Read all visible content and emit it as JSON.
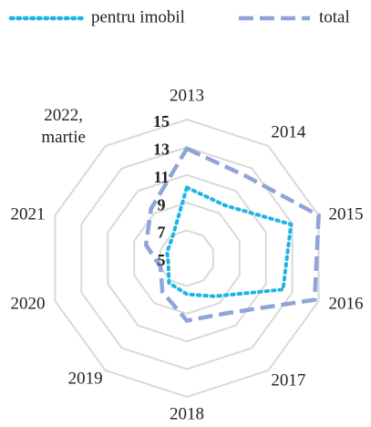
{
  "chart_data": {
    "type": "radar",
    "categories": [
      "2013",
      "2014",
      "2015",
      "2016",
      "2017",
      "2018",
      "2019",
      "2020",
      "2021",
      "2022, martie"
    ],
    "series": [
      {
        "name": "pentru imobil",
        "color": "#1fb4e6",
        "values": [
          10.1,
          9.7,
          12.9,
          12.3,
          8.4,
          7.6,
          7.2,
          6.4,
          6.5,
          6.8
        ]
      },
      {
        "name": "total",
        "color": "#8fa4d8",
        "values": [
          12.9,
          12.3,
          15.0,
          14.7,
          9.9,
          9.5,
          8.0,
          7.0,
          8.1,
          9.4
        ]
      }
    ],
    "ylim": [
      5,
      15
    ],
    "yticks": [
      5,
      7,
      9,
      11,
      13,
      15
    ],
    "grid": true
  }
}
